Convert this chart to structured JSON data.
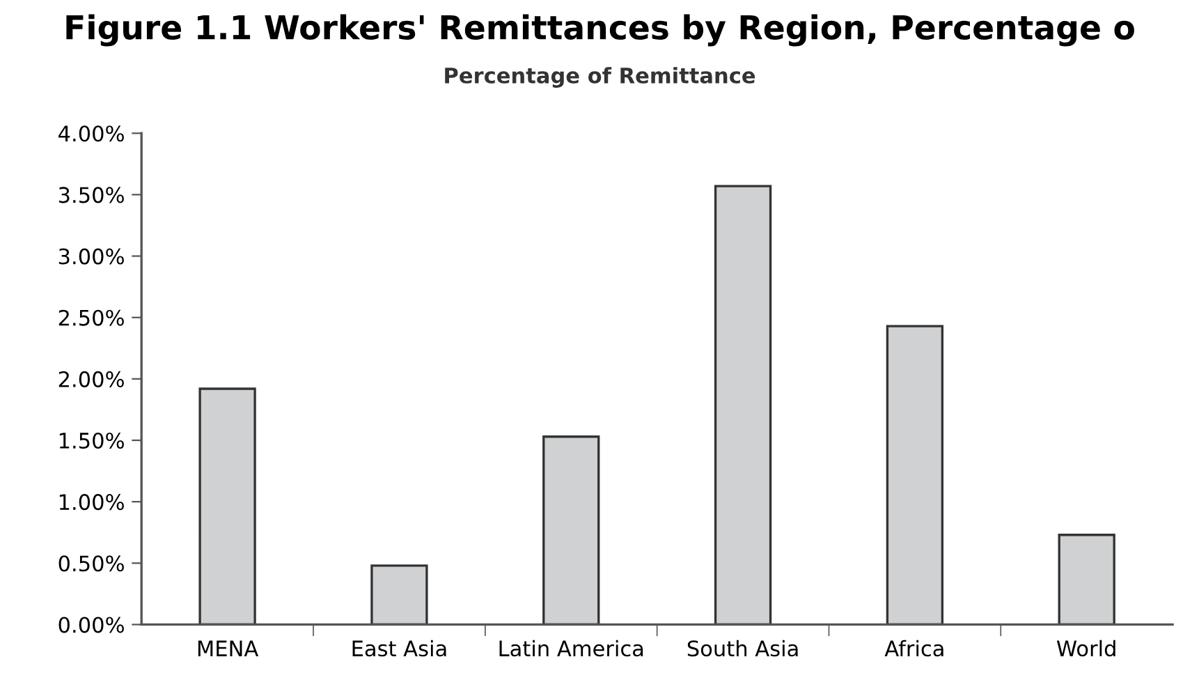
{
  "chart_data": {
    "type": "bar",
    "title": "Figure 1.1 Workers' Remittances by Region, Percentage o",
    "subtitle": "Percentage of Remittance",
    "categories": [
      "MENA",
      "East Asia",
      "Latin America",
      "South Asia",
      "Africa",
      "World"
    ],
    "values": [
      1.92,
      0.48,
      1.53,
      3.57,
      2.43,
      0.73
    ],
    "color": "#d0d1d3",
    "ylim": [
      0,
      4
    ],
    "yticks": [
      {
        "value": 0,
        "label": "0.00%"
      },
      {
        "value": 0.5,
        "label": "0.50%"
      },
      {
        "value": 1,
        "label": "1.00%"
      },
      {
        "value": 1.5,
        "label": "1.50%"
      },
      {
        "value": 2,
        "label": "2.00%"
      },
      {
        "value": 2.5,
        "label": "2.50%"
      },
      {
        "value": 3,
        "label": "3.00%"
      },
      {
        "value": 3.5,
        "label": "3.50%"
      },
      {
        "value": 4,
        "label": "4.00%"
      }
    ],
    "grid": false
  }
}
